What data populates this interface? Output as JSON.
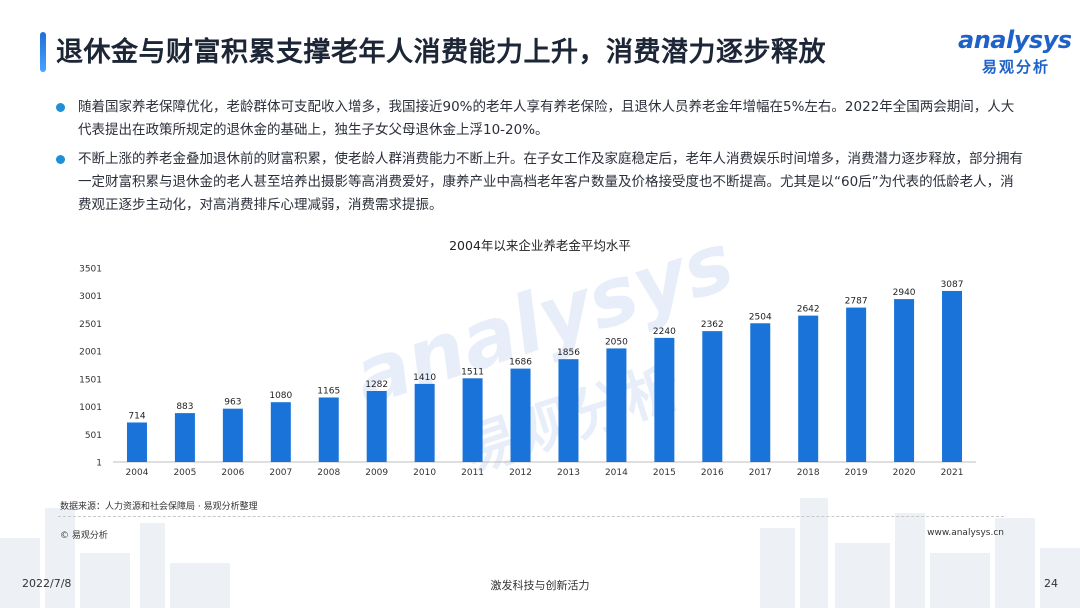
{
  "header": {
    "title": "退休金与财富积累支撑老年人消费能力上升，消费潜力逐步释放",
    "logo_word": "analysys",
    "logo_sub": "易观分析"
  },
  "bullets": [
    "随着国家养老保障优化，老龄群体可支配收入增多，我国接近90%的老年人享有养老保险，且退休人员养老金年增幅在5%左右。2022年全国两会期间，人大代表提出在政策所规定的退休金的基础上，独生子女父母退休金上浮10-20%。",
    "不断上涨的养老金叠加退休前的财富积累，使老龄人群消费能力不断上升。在子女工作及家庭稳定后，老年人消费娱乐时间增多，消费潜力逐步释放，部分拥有一定财富积累与退休金的老人甚至培养出摄影等高消费爱好，康养产业中高档老年客户数量及价格接受度也不断提高。尤其是以“60后”为代表的低龄老人，消费观正逐步主动化，对高消费排斥心理减弱，消费需求提振。"
  ],
  "chart_data": {
    "type": "bar",
    "title": "2004年以来企业养老金平均水平",
    "categories": [
      "2004",
      "2005",
      "2006",
      "2007",
      "2008",
      "2009",
      "2010",
      "2011",
      "2012",
      "2013",
      "2014",
      "2015",
      "2016",
      "2017",
      "2018",
      "2019",
      "2020",
      "2021"
    ],
    "values": [
      714,
      883,
      963,
      1080,
      1165,
      1282,
      1410,
      1511,
      1686,
      1856,
      2050,
      2240,
      2362,
      2504,
      2642,
      2787,
      2940,
      3087
    ],
    "yticks": [
      1,
      501,
      1001,
      1501,
      2001,
      2501,
      3001,
      3501
    ],
    "ylim": [
      1,
      3501
    ],
    "xlabel": "",
    "ylabel": "",
    "bar_color": "#1a73d9",
    "grid": false
  },
  "footer": {
    "source": "数据来源：人力资源和社会保障局 · 易观分析整理",
    "copyright": "© 易观分析",
    "website": "www.analysys.cn",
    "date": "2022/7/8",
    "slogan": "激发科技与创新活力",
    "page": "24"
  },
  "watermark": {
    "word": "analysys",
    "sub": "易观分析"
  }
}
